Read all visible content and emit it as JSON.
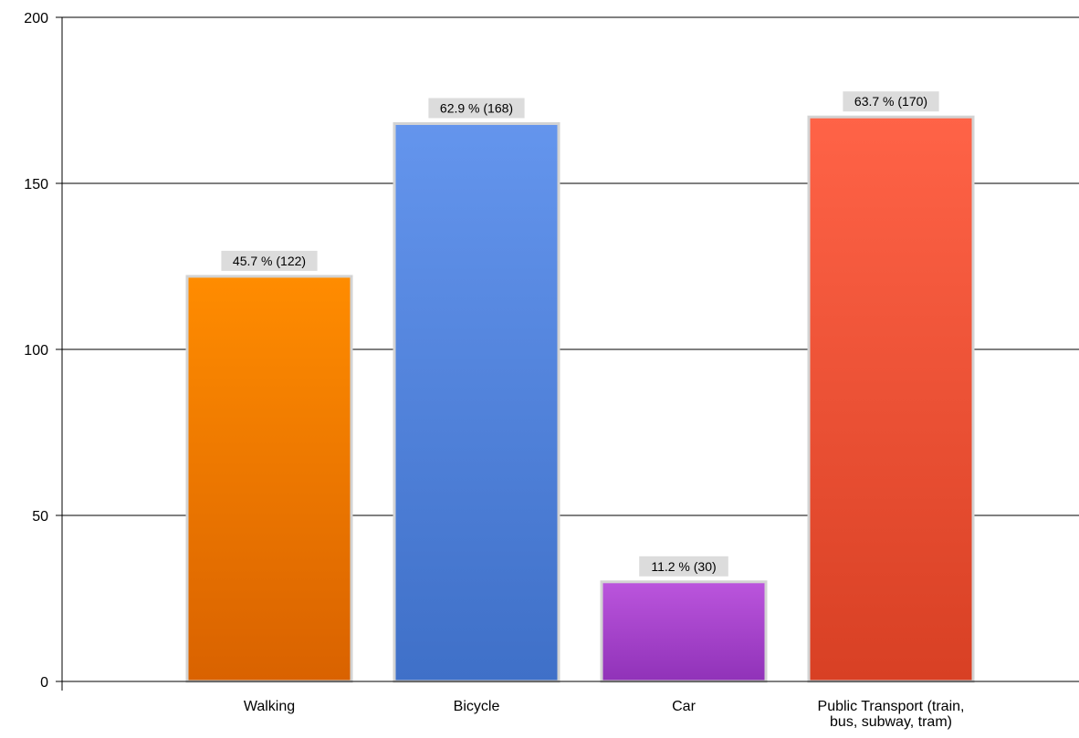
{
  "chart_data": {
    "type": "bar",
    "title": "",
    "xlabel": "",
    "ylabel": "",
    "categories": [
      [
        "Walking"
      ],
      [
        "Bicycle"
      ],
      [
        "Car"
      ],
      [
        "Public Transport (train,",
        "bus, subway, tram)"
      ]
    ],
    "values": [
      122,
      168,
      30,
      170
    ],
    "data_labels": [
      "45.7 % (122)",
      "62.9 % (168)",
      "11.2 % (30)",
      "63.7 % (170)"
    ],
    "colors": [
      [
        "#ff8c00",
        "#d96200"
      ],
      [
        "#6495ed",
        "#3f70c8"
      ],
      [
        "#bb55dd",
        "#9032b8"
      ],
      [
        "#ff6347",
        "#d84024"
      ]
    ],
    "ylim": [
      0,
      200
    ],
    "yticks": [
      0,
      50,
      100,
      150,
      200
    ],
    "grid": true,
    "legend": "none"
  }
}
